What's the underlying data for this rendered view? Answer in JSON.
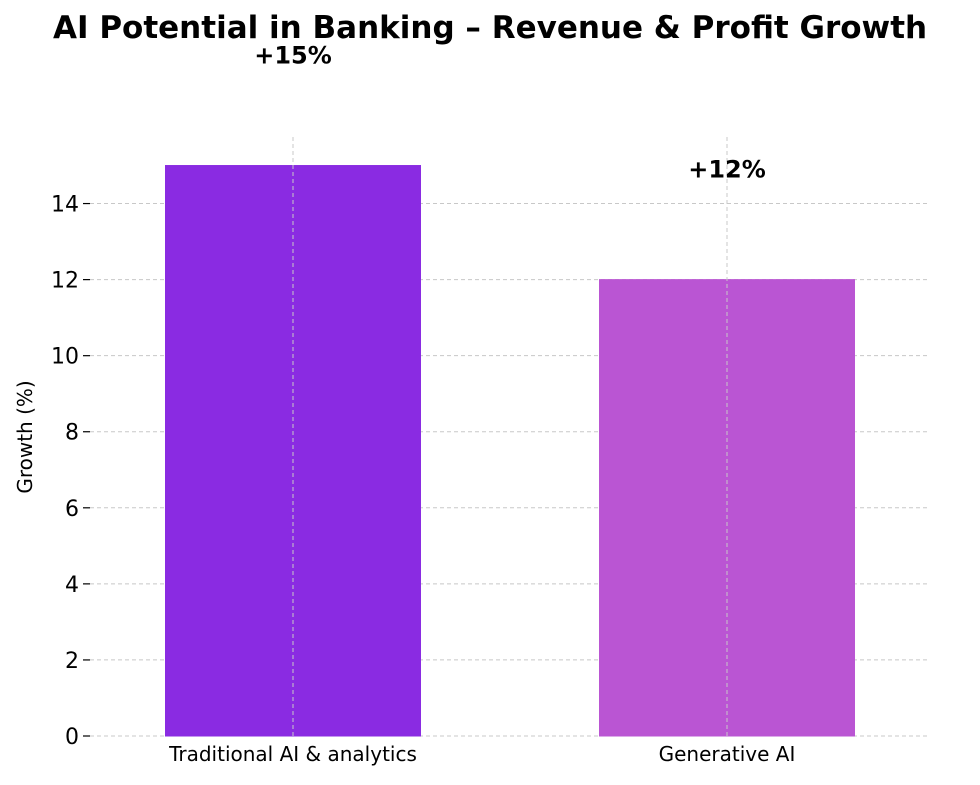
{
  "chart_data": {
    "type": "bar",
    "title": "AI Potential in Banking – Revenue & Profit Growth",
    "xlabel": "",
    "ylabel": "Growth (%)",
    "categories": [
      "Traditional AI & analytics",
      "Generative AI"
    ],
    "values": [
      15,
      12
    ],
    "data_labels": [
      "+15%",
      "+12%"
    ],
    "colors": [
      "#8A2BE2",
      "#BA55D3"
    ],
    "ylim": [
      0,
      15.75
    ],
    "yticks": [
      0,
      2,
      4,
      6,
      8,
      10,
      12,
      14
    ],
    "ytick_labels": [
      "0",
      "2",
      "4",
      "6",
      "8",
      "10",
      "12",
      "14"
    ],
    "grid": true,
    "legend": "none"
  }
}
